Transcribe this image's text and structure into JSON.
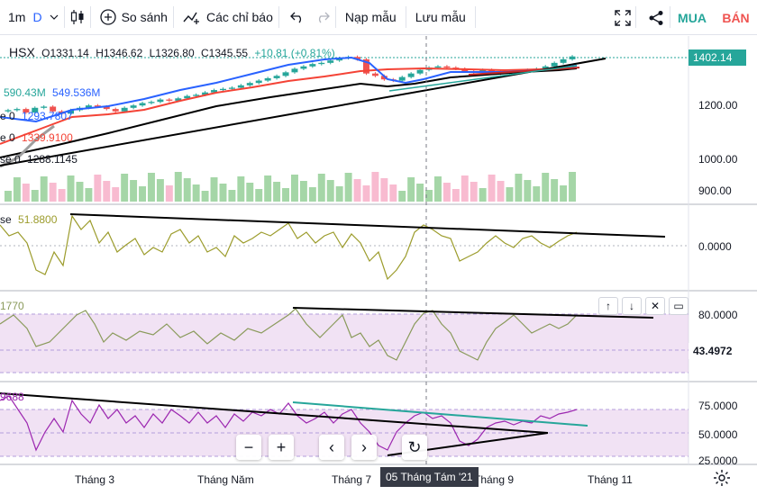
{
  "toolbar": {
    "interval": "1m",
    "style": "D",
    "compare_label": "So sánh",
    "indicators_label": "Các chỉ báo",
    "save_template_label": "Nạp mẫu",
    "save_layout_label": "Lưu mẫu",
    "buy_label": "MUA",
    "sell_label": "BÁN"
  },
  "symbol_legend": {
    "symbol": "HSX",
    "open": "O1331.14",
    "high": "H1346.62",
    "low": "L1326.80",
    "close": "C1345.55",
    "change": "+10.81 (+0.81%)"
  },
  "ma_legends": {
    "volume_a": "590.43M",
    "volume_b": "549.536M",
    "ma1_prefix": "e 0",
    "ma1_value": "1293.7807",
    "ma2_prefix": "e 0",
    "ma2_value": "1339.9100",
    "ma3_prefix": "se 0",
    "ma3_value": "1288.1145"
  },
  "indicator_legends": {
    "osc_prefix": "se",
    "osc_value": "51.8800",
    "stoch_value": "1770",
    "rsi_value": "9688"
  },
  "price_axis": {
    "current_price": "1402.14",
    "ticks": [
      "1200.00",
      "1000.00",
      "900.00"
    ],
    "osc_ticks": [
      "0.0000"
    ],
    "stoch_ticks": [
      "80.0000"
    ],
    "stoch_current": "43.4972",
    "rsi_ticks": [
      "75.0000",
      "50.0000",
      "25.0000"
    ]
  },
  "time_axis": {
    "labels": [
      "Tháng 3",
      "Tháng Năm",
      "Tháng 7",
      "Tháng 9",
      "Tháng 11"
    ],
    "crosshair_label": "05 Tháng Tám '21"
  },
  "colors": {
    "up": "#26a69a",
    "down": "#ef5350",
    "ma_blue": "#2962ff",
    "ma_red": "#f44336",
    "ma_black": "#000000",
    "osc_line": "#9c9c2c",
    "stoch_line": "#8a9a5b",
    "rsi_line": "#9c27b0",
    "stoch_band": "#e1bee7",
    "teal_trend": "#26a69a"
  },
  "icons": {
    "bar_style": "candles-icon",
    "compare": "plus-circle-icon",
    "indicators": "indicators-icon",
    "undo": "undo-icon",
    "redo": "redo-icon",
    "fullscreen": "fullscreen-icon",
    "share": "share-icon",
    "settings": "gear-icon"
  },
  "chart_data": {
    "type": "candlestick",
    "symbol": "HSX",
    "ylim": [
      880,
      1420
    ],
    "approx_close_series": [
      1175,
      1180,
      1165,
      1185,
      1190,
      1170,
      1160,
      1175,
      1185,
      1195,
      1190,
      1180,
      1170,
      1185,
      1195,
      1205,
      1210,
      1220,
      1215,
      1225,
      1235,
      1240,
      1250,
      1260,
      1265,
      1270,
      1280,
      1290,
      1300,
      1310,
      1320,
      1335,
      1350,
      1360,
      1370,
      1375,
      1385,
      1395,
      1400,
      1390,
      1330,
      1320,
      1305,
      1300,
      1315,
      1330,
      1345,
      1355,
      1360,
      1355,
      1350,
      1340,
      1335,
      1345,
      1340,
      1330,
      1335,
      1340,
      1345,
      1350,
      1360,
      1375,
      1390,
      1402
    ],
    "volume_visible": true
  }
}
